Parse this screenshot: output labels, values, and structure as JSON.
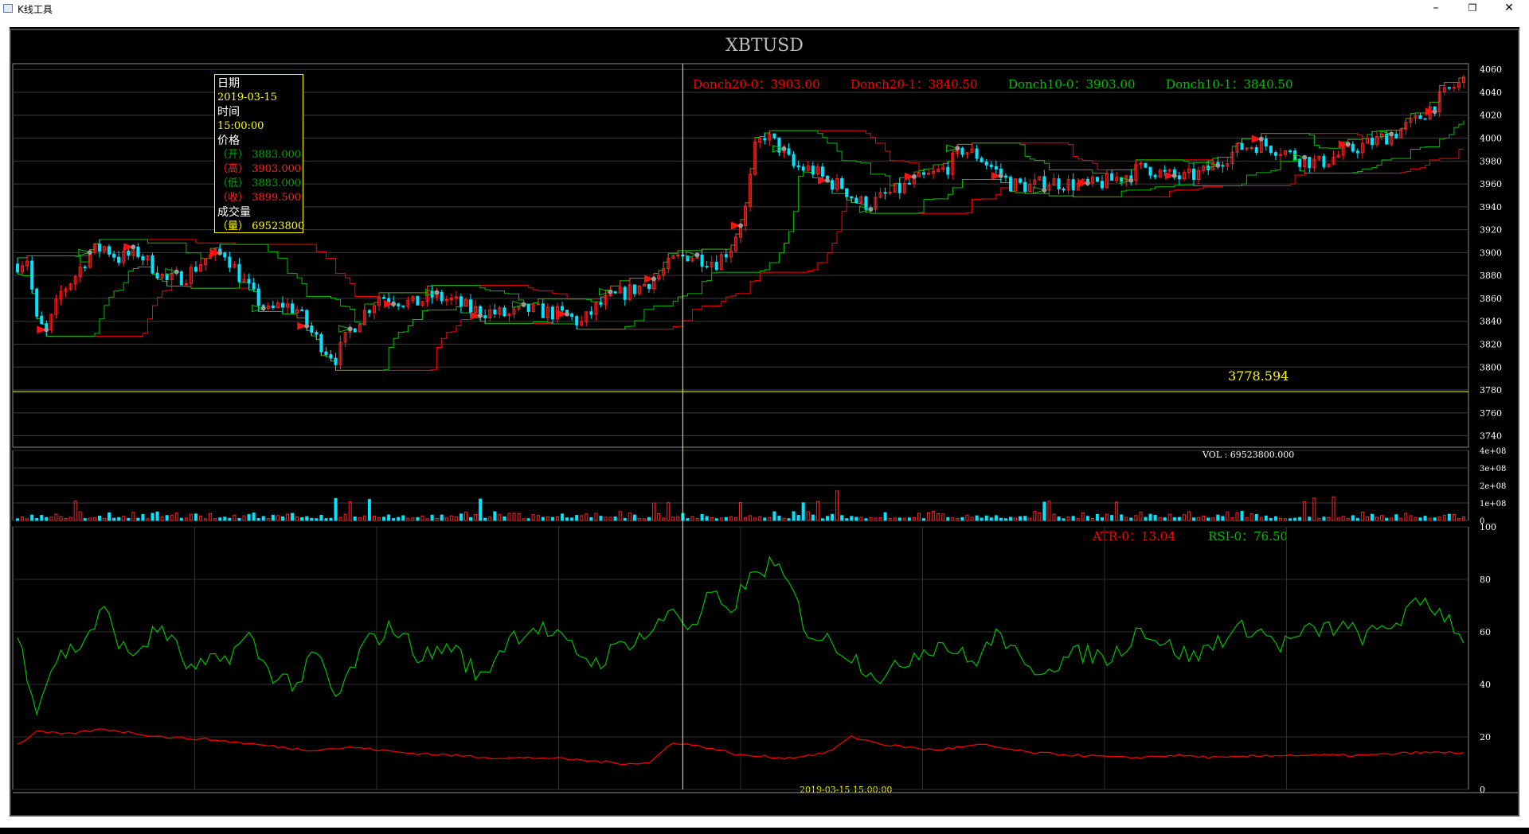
{
  "window": {
    "title": "K线工具",
    "min_icon": "minimize-icon",
    "max_icon": "restore-icon",
    "close_icon": "close-icon"
  },
  "colors": {
    "up": "#ff2020",
    "down": "#00e5ff",
    "channel20": "#ff0000",
    "channel10": "#00c000",
    "rsi": "#00c000",
    "atr": "#ff0000",
    "crosshair": "#ffff00"
  },
  "chart_data": [
    {
      "type": "candlestick",
      "title": "XBTUSD",
      "symbol": "XBTUSD",
      "ylim": [
        3730,
        4065
      ],
      "yticks": [
        "4060",
        "4040",
        "4020",
        "4000",
        "3980",
        "3960",
        "3940",
        "3920",
        "3900",
        "3880",
        "3860",
        "3840",
        "3820",
        "3800",
        "3780",
        "3760",
        "3740"
      ],
      "legend": [
        {
          "text": "Donch20-0：3903.00",
          "color": "#ff0000"
        },
        {
          "text": "Donch20-1：3840.50",
          "color": "#ff0000"
        },
        {
          "text": "Donch10-0：3903.00",
          "color": "#00c000"
        },
        {
          "text": "Donch10-1：3840.50",
          "color": "#00c000"
        }
      ],
      "price_label": "3778.594",
      "price_level": 3778.594,
      "close_anchors": [
        [
          0,
          3890
        ],
        [
          4,
          3895
        ],
        [
          8,
          3840
        ],
        [
          12,
          3830
        ],
        [
          18,
          3865
        ],
        [
          24,
          3880
        ],
        [
          30,
          3900
        ],
        [
          36,
          3905
        ],
        [
          42,
          3895
        ],
        [
          50,
          3900
        ],
        [
          56,
          3888
        ],
        [
          62,
          3875
        ],
        [
          70,
          3880
        ],
        [
          78,
          3895
        ],
        [
          86,
          3900
        ],
        [
          92,
          3880
        ],
        [
          98,
          3862
        ],
        [
          104,
          3848
        ],
        [
          110,
          3855
        ],
        [
          116,
          3850
        ],
        [
          122,
          3830
        ],
        [
          128,
          3815
        ],
        [
          132,
          3808
        ],
        [
          138,
          3832
        ],
        [
          144,
          3848
        ],
        [
          150,
          3862
        ],
        [
          156,
          3860
        ],
        [
          164,
          3855
        ],
        [
          172,
          3862
        ],
        [
          180,
          3858
        ],
        [
          188,
          3850
        ],
        [
          196,
          3848
        ],
        [
          204,
          3845
        ],
        [
          212,
          3850
        ],
        [
          220,
          3848
        ],
        [
          228,
          3845
        ],
        [
          234,
          3838
        ],
        [
          240,
          3852
        ],
        [
          246,
          3860
        ],
        [
          252,
          3865
        ],
        [
          258,
          3870
        ],
        [
          266,
          3880
        ],
        [
          272,
          3893
        ],
        [
          278,
          3898
        ],
        [
          284,
          3895
        ],
        [
          290,
          3892
        ],
        [
          296,
          3905
        ],
        [
          302,
          3938
        ],
        [
          306,
          3990
        ],
        [
          310,
          4003
        ],
        [
          316,
          3992
        ],
        [
          322,
          3975
        ],
        [
          330,
          3972
        ],
        [
          336,
          3962
        ],
        [
          342,
          3958
        ],
        [
          348,
          3945
        ],
        [
          354,
          3942
        ],
        [
          360,
          3950
        ],
        [
          366,
          3955
        ],
        [
          372,
          3962
        ],
        [
          380,
          3968
        ],
        [
          386,
          3975
        ],
        [
          392,
          3990
        ],
        [
          398,
          3985
        ],
        [
          404,
          3975
        ],
        [
          412,
          3960
        ],
        [
          420,
          3958
        ],
        [
          428,
          3962
        ],
        [
          436,
          3960
        ],
        [
          444,
          3958
        ],
        [
          452,
          3962
        ],
        [
          460,
          3968
        ],
        [
          468,
          3975
        ],
        [
          476,
          3968
        ],
        [
          484,
          3965
        ],
        [
          492,
          3970
        ],
        [
          500,
          3982
        ],
        [
          508,
          3992
        ],
        [
          516,
          3995
        ],
        [
          524,
          3990
        ],
        [
          532,
          3982
        ],
        [
          540,
          3978
        ],
        [
          548,
          3985
        ],
        [
          556,
          3992
        ],
        [
          564,
          3998
        ],
        [
          572,
          4005
        ],
        [
          580,
          4015
        ],
        [
          588,
          4030
        ],
        [
          594,
          4042
        ],
        [
          600,
          4050
        ]
      ],
      "crosshair": {
        "date": "2019-03-15",
        "time": "15:00:00",
        "label": "2019-03-15 15:00:00"
      },
      "tooltip": {
        "date_label": "日期",
        "date": "2019-03-15",
        "time_label": "时间",
        "time": "15:00:00",
        "price_label": "价格",
        "open": "（开） 3883.000",
        "high": "（高） 3903.000",
        "low": "（低） 3883.000",
        "close": "（收） 3899.500",
        "volume_label": "成交量",
        "volume": "（量） 69523800"
      }
    },
    {
      "type": "bar",
      "title": "VOL",
      "legend": "VOL : 69523800.000",
      "ylim": [
        0,
        400000000
      ],
      "yticks": [
        "4e+08",
        "3e+08",
        "2e+08",
        "1e+08",
        "0"
      ]
    },
    {
      "type": "line",
      "ylim": [
        0,
        100
      ],
      "yticks": [
        "100",
        "80",
        "60",
        "40",
        "20",
        "0"
      ],
      "legend": [
        {
          "text": "ATR-0：13.04",
          "color": "#ff0000"
        },
        {
          "text": "RSI-0：76.50",
          "color": "#00c000"
        }
      ],
      "series": [
        {
          "name": "RSI-0",
          "anchors": [
            [
              0,
              58
            ],
            [
              8,
              32
            ],
            [
              16,
              50
            ],
            [
              26,
              55
            ],
            [
              36,
              68
            ],
            [
              46,
              50
            ],
            [
              60,
              62
            ],
            [
              72,
              45
            ],
            [
              86,
              50
            ],
            [
              96,
              58
            ],
            [
              104,
              45
            ],
            [
              116,
              40
            ],
            [
              124,
              52
            ],
            [
              132,
              34
            ],
            [
              144,
              55
            ],
            [
              156,
              62
            ],
            [
              168,
              50
            ],
            [
              180,
              55
            ],
            [
              192,
              42
            ],
            [
              204,
              58
            ],
            [
              216,
              62
            ],
            [
              228,
              55
            ],
            [
              240,
              48
            ],
            [
              252,
              56
            ],
            [
              264,
              60
            ],
            [
              272,
              70
            ],
            [
              280,
              60
            ],
            [
              288,
              75
            ],
            [
              294,
              66
            ],
            [
              302,
              78
            ],
            [
              312,
              86
            ],
            [
              320,
              78
            ],
            [
              328,
              60
            ],
            [
              340,
              55
            ],
            [
              350,
              48
            ],
            [
              360,
              42
            ],
            [
              372,
              52
            ],
            [
              384,
              56
            ],
            [
              396,
              48
            ],
            [
              408,
              60
            ],
            [
              418,
              45
            ],
            [
              430,
              48
            ],
            [
              442,
              52
            ],
            [
              454,
              50
            ],
            [
              466,
              62
            ],
            [
              476,
              55
            ],
            [
              488,
              50
            ],
            [
              500,
              58
            ],
            [
              512,
              62
            ],
            [
              524,
              55
            ],
            [
              536,
              60
            ],
            [
              548,
              62
            ],
            [
              560,
              58
            ],
            [
              572,
              64
            ],
            [
              584,
              72
            ],
            [
              594,
              65
            ],
            [
              600,
              58
            ]
          ]
        },
        {
          "name": "ATR-0",
          "anchors": [
            [
              0,
              17
            ],
            [
              8,
              22
            ],
            [
              20,
              21
            ],
            [
              36,
              23
            ],
            [
              60,
              20
            ],
            [
              80,
              19
            ],
            [
              100,
              17
            ],
            [
              120,
              15
            ],
            [
              140,
              16
            ],
            [
              160,
              14
            ],
            [
              180,
              13
            ],
            [
              200,
              12
            ],
            [
              220,
              12
            ],
            [
              236,
              11
            ],
            [
              250,
              10
            ],
            [
              262,
              10
            ],
            [
              272,
              18
            ],
            [
              286,
              16
            ],
            [
              300,
              13
            ],
            [
              320,
              12
            ],
            [
              336,
              14
            ],
            [
              346,
              20
            ],
            [
              360,
              17
            ],
            [
              380,
              15
            ],
            [
              400,
              17
            ],
            [
              420,
              14
            ],
            [
              440,
              13
            ],
            [
              460,
              12
            ],
            [
              480,
              13
            ],
            [
              500,
              12
            ],
            [
              520,
              13
            ],
            [
              540,
              13
            ],
            [
              560,
              13
            ],
            [
              580,
              14
            ],
            [
              600,
              14
            ]
          ]
        }
      ]
    }
  ]
}
